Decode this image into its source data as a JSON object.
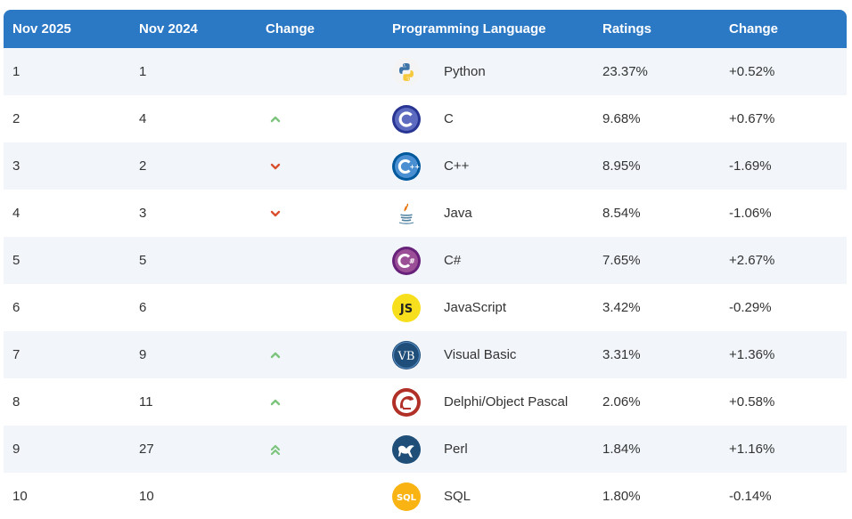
{
  "columns": [
    "Nov 2025",
    "Nov 2024",
    "Change",
    "Programming Language",
    "Ratings",
    "Change"
  ],
  "colors": {
    "header_bg": "#2b78c5",
    "row_alt_bg": "#f2f6fb",
    "up_arrow": "#7cc47c",
    "down_arrow": "#d9502f"
  },
  "rows": [
    {
      "rank_2025": "1",
      "rank_2024": "1",
      "trend": "none",
      "language": "Python",
      "logo": "python-logo-icon",
      "rating": "23.37%",
      "change": "+0.52%"
    },
    {
      "rank_2025": "2",
      "rank_2024": "4",
      "trend": "up",
      "language": "C",
      "logo": "c-logo-icon",
      "rating": "9.68%",
      "change": "+0.67%"
    },
    {
      "rank_2025": "3",
      "rank_2024": "2",
      "trend": "down",
      "language": "C++",
      "logo": "cpp-logo-icon",
      "rating": "8.95%",
      "change": "-1.69%"
    },
    {
      "rank_2025": "4",
      "rank_2024": "3",
      "trend": "down",
      "language": "Java",
      "logo": "java-logo-icon",
      "rating": "8.54%",
      "change": "-1.06%"
    },
    {
      "rank_2025": "5",
      "rank_2024": "5",
      "trend": "none",
      "language": "C#",
      "logo": "csharp-logo-icon",
      "rating": "7.65%",
      "change": "+2.67%"
    },
    {
      "rank_2025": "6",
      "rank_2024": "6",
      "trend": "none",
      "language": "JavaScript",
      "logo": "javascript-logo-icon",
      "rating": "3.42%",
      "change": "-0.29%"
    },
    {
      "rank_2025": "7",
      "rank_2024": "9",
      "trend": "up",
      "language": "Visual Basic",
      "logo": "visual-basic-logo-icon",
      "rating": "3.31%",
      "change": "+1.36%"
    },
    {
      "rank_2025": "8",
      "rank_2024": "11",
      "trend": "up",
      "language": "Delphi/Object Pascal",
      "logo": "delphi-logo-icon",
      "rating": "2.06%",
      "change": "+0.58%"
    },
    {
      "rank_2025": "9",
      "rank_2024": "27",
      "trend": "up-double",
      "language": "Perl",
      "logo": "perl-logo-icon",
      "rating": "1.84%",
      "change": "+1.16%"
    },
    {
      "rank_2025": "10",
      "rank_2024": "10",
      "trend": "none",
      "language": "SQL",
      "logo": "sql-logo-icon",
      "rating": "1.80%",
      "change": "-0.14%"
    }
  ],
  "logo_text": {
    "javascript": "JS",
    "visual_basic": "VB",
    "sql": "SQL"
  }
}
